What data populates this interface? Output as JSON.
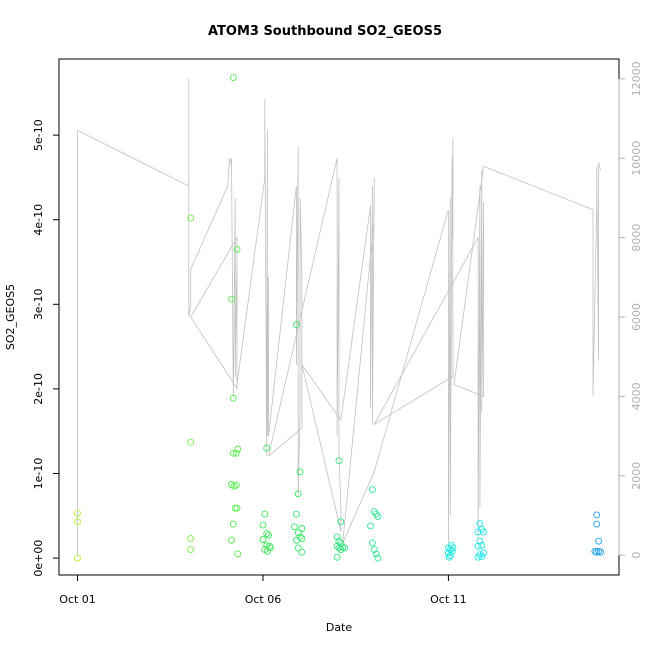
{
  "chart_data": {
    "type": "scatter",
    "title": "ATOM3 Southbound SO2_GEOS5",
    "xlabel": "Date",
    "ylabel": "SO2_GEOS5",
    "x_ticks": [
      "Oct 01",
      "Oct 06",
      "Oct 11"
    ],
    "x_tick_days": [
      1,
      6,
      11
    ],
    "xlim_days": [
      0.5,
      15.6
    ],
    "y_ticks": [
      "0e+00",
      "1e-10",
      "2e-10",
      "3e-10",
      "4e-10",
      "5e-10"
    ],
    "y_tick_values": [
      0,
      1e-10,
      2e-10,
      3e-10,
      4e-10,
      5e-10
    ],
    "ylim": [
      -2e-11,
      5.9e-10
    ],
    "y2_ticks": [
      "0",
      "2000",
      "4000",
      "6000",
      "8000",
      "10000",
      "12000"
    ],
    "y2_tick_values": [
      0,
      2000,
      4000,
      6000,
      8000,
      10000,
      12000
    ],
    "y2lim": [
      -500,
      12500
    ],
    "y2_color": "#b0b0b0",
    "grid": false,
    "legend": "none",
    "points": [
      {
        "x": 1.0,
        "y": 5.3e-11,
        "color": "#b5f03c"
      },
      {
        "x": 1.0,
        "y": 4.3e-11,
        "color": "#b5f03c"
      },
      {
        "x": 1.0,
        "y": 0.0,
        "color": "#b5f03c"
      },
      {
        "x": 4.05,
        "y": 4.02e-10,
        "color": "#7cf046"
      },
      {
        "x": 4.05,
        "y": 1.37e-10,
        "color": "#7cf046"
      },
      {
        "x": 4.05,
        "y": 2.3e-11,
        "color": "#7cf046"
      },
      {
        "x": 4.05,
        "y": 1e-11,
        "color": "#7cf046"
      },
      {
        "x": 5.2,
        "y": 5.68e-10,
        "color": "#55ee4b"
      },
      {
        "x": 5.15,
        "y": 3.06e-10,
        "color": "#55ee4b"
      },
      {
        "x": 5.2,
        "y": 1.89e-10,
        "color": "#55ee4b"
      },
      {
        "x": 5.3,
        "y": 3.65e-10,
        "color": "#55ee4b"
      },
      {
        "x": 5.2,
        "y": 1.24e-10,
        "color": "#55ee4b"
      },
      {
        "x": 5.28,
        "y": 1.24e-10,
        "color": "#55ee4b"
      },
      {
        "x": 5.32,
        "y": 1.29e-10,
        "color": "#55ee4b"
      },
      {
        "x": 5.15,
        "y": 8.7e-11,
        "color": "#55ee4b"
      },
      {
        "x": 5.22,
        "y": 8.5e-11,
        "color": "#55ee4b"
      },
      {
        "x": 5.28,
        "y": 8.6e-11,
        "color": "#55ee4b"
      },
      {
        "x": 5.25,
        "y": 5.9e-11,
        "color": "#55ee4b"
      },
      {
        "x": 5.3,
        "y": 5.9e-11,
        "color": "#55ee4b"
      },
      {
        "x": 5.2,
        "y": 4e-11,
        "color": "#55ee4b"
      },
      {
        "x": 5.15,
        "y": 2.1e-11,
        "color": "#55ee4b"
      },
      {
        "x": 5.32,
        "y": 5e-12,
        "color": "#55ee4b"
      },
      {
        "x": 6.1,
        "y": 1.3e-10,
        "color": "#3fe858"
      },
      {
        "x": 6.05,
        "y": 5.2e-11,
        "color": "#3fe858"
      },
      {
        "x": 6.0,
        "y": 3.9e-11,
        "color": "#3fe858"
      },
      {
        "x": 6.1,
        "y": 2.9e-11,
        "color": "#3fe858"
      },
      {
        "x": 6.15,
        "y": 2.7e-11,
        "color": "#3fe858"
      },
      {
        "x": 6.0,
        "y": 2.2e-11,
        "color": "#3fe858"
      },
      {
        "x": 6.1,
        "y": 1.5e-11,
        "color": "#3fe858"
      },
      {
        "x": 6.18,
        "y": 1.4e-11,
        "color": "#3fe858"
      },
      {
        "x": 6.05,
        "y": 1e-11,
        "color": "#3fe858"
      },
      {
        "x": 6.12,
        "y": 8e-12,
        "color": "#3fe858"
      },
      {
        "x": 6.2,
        "y": 1.2e-11,
        "color": "#3fe858"
      },
      {
        "x": 6.9,
        "y": 2.76e-10,
        "color": "#35e667"
      },
      {
        "x": 7.0,
        "y": 1.02e-10,
        "color": "#35e667"
      },
      {
        "x": 6.95,
        "y": 7.6e-11,
        "color": "#35e667"
      },
      {
        "x": 6.9,
        "y": 5.2e-11,
        "color": "#35e667"
      },
      {
        "x": 6.85,
        "y": 3.7e-11,
        "color": "#35e667"
      },
      {
        "x": 7.05,
        "y": 3.5e-11,
        "color": "#35e667"
      },
      {
        "x": 6.95,
        "y": 3e-11,
        "color": "#35e667"
      },
      {
        "x": 7.0,
        "y": 2.5e-11,
        "color": "#35e667"
      },
      {
        "x": 6.9,
        "y": 2.1e-11,
        "color": "#35e667"
      },
      {
        "x": 7.05,
        "y": 2.3e-11,
        "color": "#35e667"
      },
      {
        "x": 6.95,
        "y": 1.2e-11,
        "color": "#35e667"
      },
      {
        "x": 7.05,
        "y": 7e-12,
        "color": "#35e667"
      },
      {
        "x": 8.05,
        "y": 1.15e-10,
        "color": "#2ee47a"
      },
      {
        "x": 8.1,
        "y": 4.3e-11,
        "color": "#2ee47a"
      },
      {
        "x": 8.0,
        "y": 2.5e-11,
        "color": "#2ee47a"
      },
      {
        "x": 8.05,
        "y": 2e-11,
        "color": "#2ee47a"
      },
      {
        "x": 8.1,
        "y": 1.7e-11,
        "color": "#2ee47a"
      },
      {
        "x": 8.0,
        "y": 1.4e-11,
        "color": "#2ee47a"
      },
      {
        "x": 8.15,
        "y": 1.3e-11,
        "color": "#2ee47a"
      },
      {
        "x": 8.2,
        "y": 1.2e-11,
        "color": "#2ee47a"
      },
      {
        "x": 8.05,
        "y": 1.2e-11,
        "color": "#2ee47a"
      },
      {
        "x": 8.1,
        "y": 1e-11,
        "color": "#2ee47a"
      },
      {
        "x": 8.0,
        "y": 1e-12,
        "color": "#2ee47a"
      },
      {
        "x": 8.95,
        "y": 8.1e-11,
        "color": "#2ee696"
      },
      {
        "x": 9.0,
        "y": 5.5e-11,
        "color": "#2ee696"
      },
      {
        "x": 9.05,
        "y": 5.2e-11,
        "color": "#2ee696"
      },
      {
        "x": 9.1,
        "y": 4.9e-11,
        "color": "#2ee696"
      },
      {
        "x": 8.9,
        "y": 3.8e-11,
        "color": "#2ee696"
      },
      {
        "x": 8.95,
        "y": 1.8e-11,
        "color": "#2ee696"
      },
      {
        "x": 9.0,
        "y": 1e-11,
        "color": "#2ee696"
      },
      {
        "x": 9.05,
        "y": 5e-12,
        "color": "#2ee696"
      },
      {
        "x": 9.1,
        "y": 0.0,
        "color": "#2ee696"
      },
      {
        "x": 11.0,
        "y": 1.2e-11,
        "color": "#1ee8e0"
      },
      {
        "x": 11.05,
        "y": 1e-11,
        "color": "#1ee8e0"
      },
      {
        "x": 11.1,
        "y": 8e-12,
        "color": "#1ee8e0"
      },
      {
        "x": 11.0,
        "y": 6e-12,
        "color": "#1ee8e0"
      },
      {
        "x": 11.05,
        "y": 3e-12,
        "color": "#1ee8e0"
      },
      {
        "x": 11.12,
        "y": 1.2e-11,
        "color": "#1ee8e0"
      },
      {
        "x": 11.08,
        "y": 1.5e-11,
        "color": "#1ee8e0"
      },
      {
        "x": 11.02,
        "y": 1e-12,
        "color": "#1ee8e0"
      },
      {
        "x": 11.85,
        "y": 4.1e-11,
        "color": "#1ee8ec"
      },
      {
        "x": 11.9,
        "y": 3.4e-11,
        "color": "#1ee8ec"
      },
      {
        "x": 11.8,
        "y": 3.1e-11,
        "color": "#1ee8ec"
      },
      {
        "x": 11.95,
        "y": 3.1e-11,
        "color": "#1ee8ec"
      },
      {
        "x": 11.85,
        "y": 2e-11,
        "color": "#1ee8ec"
      },
      {
        "x": 11.9,
        "y": 1.5e-11,
        "color": "#1ee8ec"
      },
      {
        "x": 11.8,
        "y": 1.4e-11,
        "color": "#1ee8ec"
      },
      {
        "x": 11.95,
        "y": 6e-12,
        "color": "#1ee8ec"
      },
      {
        "x": 11.85,
        "y": 4e-12,
        "color": "#1ee8ec"
      },
      {
        "x": 11.9,
        "y": 2e-12,
        "color": "#1ee8ec"
      },
      {
        "x": 11.8,
        "y": 1e-12,
        "color": "#1ee8ec"
      },
      {
        "x": 15.0,
        "y": 5.1e-11,
        "color": "#1ea0ec"
      },
      {
        "x": 15.0,
        "y": 4e-11,
        "color": "#1ea0ec"
      },
      {
        "x": 15.05,
        "y": 2e-11,
        "color": "#1ea0ec"
      },
      {
        "x": 14.95,
        "y": 8e-12,
        "color": "#1ea0ec"
      },
      {
        "x": 15.0,
        "y": 7e-12,
        "color": "#1ea0ec"
      },
      {
        "x": 15.05,
        "y": 8e-12,
        "color": "#1ea0ec"
      },
      {
        "x": 15.1,
        "y": 7e-12,
        "color": "#1ea0ec"
      }
    ],
    "altitude_line": {
      "color": "#c0c0c0",
      "x": [
        1.0,
        1.0,
        4.0,
        4.0,
        4.0,
        4.05,
        4.05,
        5.05,
        5.1,
        5.15,
        5.15,
        5.2,
        5.25,
        5.25,
        5.3,
        5.3,
        4.05,
        5.3,
        5.3,
        6.05,
        6.05,
        6.1,
        6.1,
        6.12,
        6.12,
        6.15,
        6.15,
        6.9,
        6.9,
        6.95,
        6.95,
        7.0,
        7.0,
        7.05,
        7.05,
        6.15,
        8.0,
        8.0,
        8.05,
        8.05,
        8.1,
        8.1,
        7.05,
        8.1,
        8.9,
        8.9,
        8.95,
        8.95,
        9.0,
        9.0,
        8.15,
        9.0,
        11.0,
        11.0,
        11.05,
        11.05,
        11.1,
        11.1,
        11.12,
        11.12,
        9.0,
        11.8,
        11.8,
        11.85,
        11.85,
        11.9,
        11.9,
        11.95,
        11.95,
        11.15,
        11.95,
        14.9,
        14.9,
        15.0,
        15.0,
        15.05,
        15.05,
        15.1
      ],
      "y": [
        0,
        10700,
        9300,
        12000,
        6000,
        6300,
        7200,
        9300,
        10000,
        9800,
        10000,
        4000,
        9000,
        4500,
        7500,
        4200,
        6000,
        8000,
        4300,
        9500,
        11500,
        2500,
        3500,
        10700,
        3000,
        7000,
        3000,
        9300,
        4800,
        10300,
        1500,
        3700,
        9000,
        7000,
        3200,
        2500,
        10000,
        3000,
        9500,
        2500,
        1200,
        600,
        4800,
        3400,
        8800,
        3700,
        9300,
        3300,
        9500,
        8500,
        300,
        2100,
        8700,
        300,
        9000,
        1000,
        10000,
        8000,
        10500,
        4500,
        3300,
        8000,
        400,
        9300,
        1200,
        9700,
        3600,
        8900,
        4000,
        4300,
        9800,
        8700,
        4000,
        8800,
        9800,
        4900,
        9900,
        9700
      ]
    }
  }
}
